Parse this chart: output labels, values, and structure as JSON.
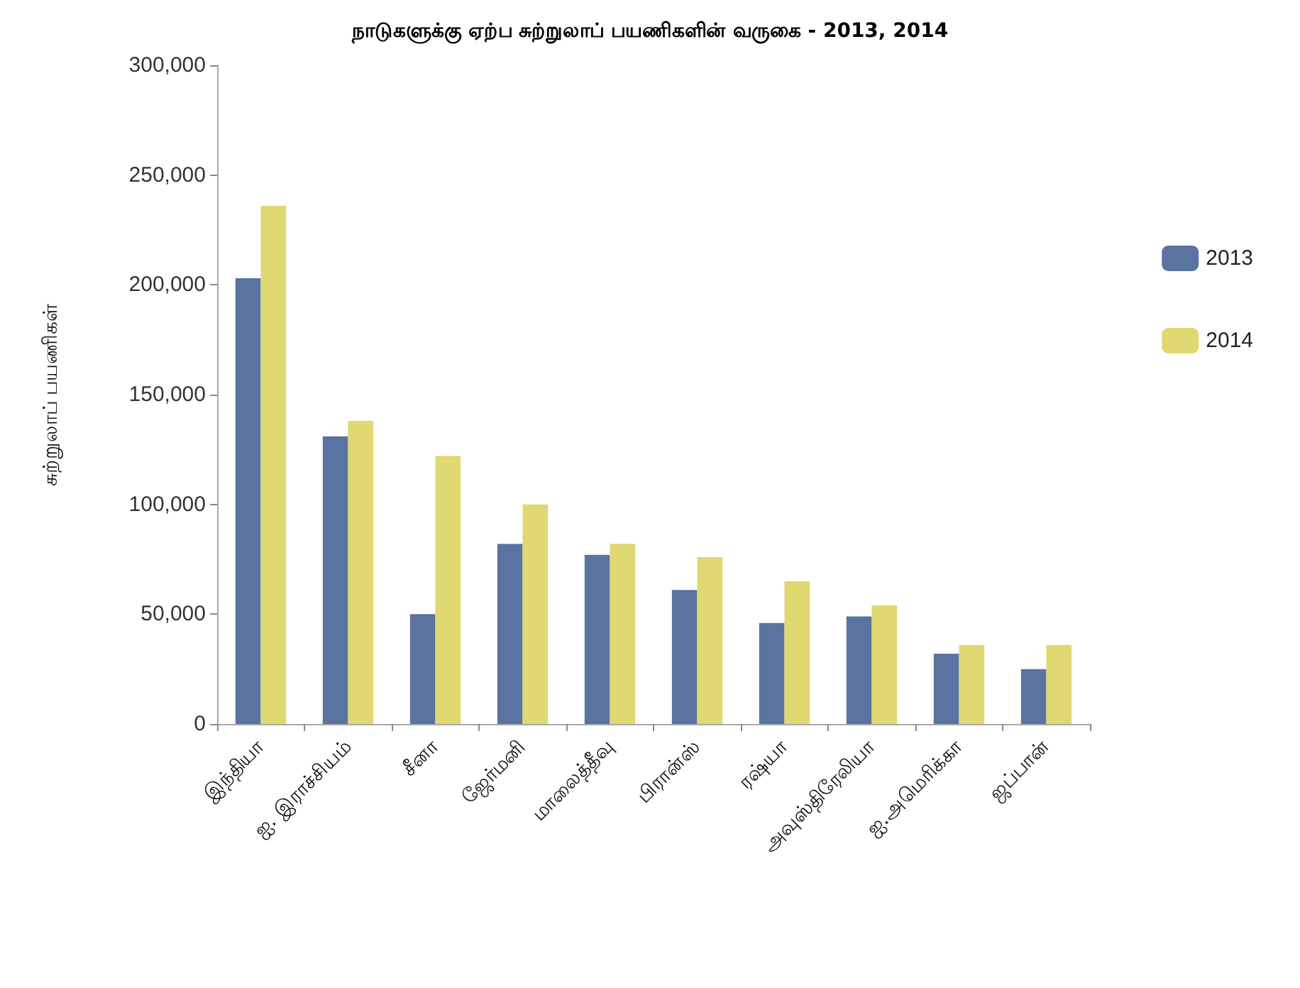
{
  "chart_data": {
    "type": "bar",
    "title": "நாடுகளுக்கு ஏற்ப சுற்றுலாப் பயணிகளின் வருகை - 2013, 2014",
    "ylabel": "சுற்றுலாப் பயணிகள்",
    "categories": [
      "இந்தியா",
      "ஐ. இராச்சியம்",
      "சீனா",
      "ஜேர்மனி",
      "மாலைத்தீவு",
      "பிரான்ஸ்",
      "ரஷ்யா",
      "அவுஸ்திரேலியா",
      "ஐ.அமெரிக்கா",
      "ஜப்பான்"
    ],
    "series": [
      {
        "name": "2013",
        "color": "#5b73a0",
        "values": [
          203000,
          131000,
          50000,
          82000,
          77000,
          61000,
          46000,
          49000,
          32000,
          25000
        ]
      },
      {
        "name": "2014",
        "color": "#e0d870",
        "values": [
          236000,
          138000,
          122000,
          100000,
          82000,
          76000,
          65000,
          54000,
          36000,
          36000
        ]
      }
    ],
    "ylim": [
      0,
      300000
    ],
    "yticks": [
      {
        "value": 0,
        "label": "0"
      },
      {
        "value": 50000,
        "label": "50,000"
      },
      {
        "value": 100000,
        "label": "100,000"
      },
      {
        "value": 150000,
        "label": "150,000"
      },
      {
        "value": 200000,
        "label": "200,000"
      },
      {
        "value": 250000,
        "label": "250,000"
      },
      {
        "value": 300000,
        "label": "300,000"
      }
    ],
    "legend": "right",
    "grid": false
  }
}
